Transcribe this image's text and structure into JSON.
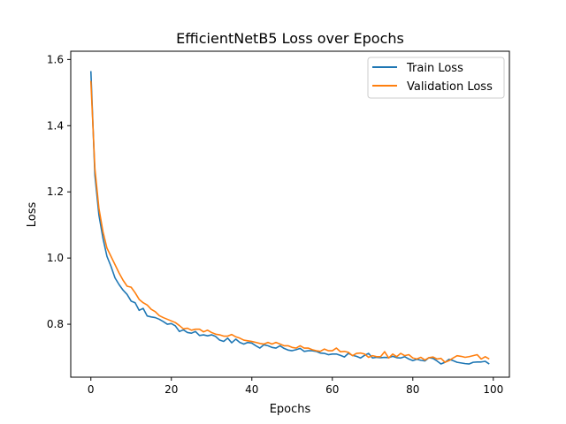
{
  "chart_data": {
    "type": "line",
    "title": "EfficientNetB5 Loss over Epochs",
    "xlabel": "Epochs",
    "ylabel": "Loss",
    "xlim": [
      -5,
      104
    ],
    "ylim": [
      0.64,
      1.625
    ],
    "x_ticks": [
      0,
      20,
      40,
      60,
      80,
      100
    ],
    "y_ticks": [
      0.8,
      1.0,
      1.2,
      1.4,
      1.6
    ],
    "x_tick_labels": [
      "0",
      "20",
      "40",
      "60",
      "80",
      "100"
    ],
    "y_tick_labels": [
      "0.8",
      "1.0",
      "1.2",
      "1.4",
      "1.6"
    ],
    "grid": false,
    "legend_position": "top-right",
    "x": [
      0,
      1,
      2,
      3,
      4,
      5,
      6,
      7,
      8,
      9,
      10,
      11,
      12,
      13,
      14,
      15,
      16,
      17,
      18,
      19,
      20,
      21,
      22,
      23,
      24,
      25,
      26,
      27,
      28,
      29,
      30,
      31,
      32,
      33,
      34,
      35,
      36,
      37,
      38,
      39,
      40,
      41,
      42,
      43,
      44,
      45,
      46,
      47,
      48,
      49,
      50,
      51,
      52,
      53,
      54,
      55,
      56,
      57,
      58,
      59,
      60,
      61,
      62,
      63,
      64,
      65,
      66,
      67,
      68,
      69,
      70,
      71,
      72,
      73,
      74,
      75,
      76,
      77,
      78,
      79,
      80,
      81,
      82,
      83,
      84,
      85,
      86,
      87,
      88,
      89,
      90,
      91,
      92,
      93,
      94,
      95,
      96,
      97,
      98,
      99
    ],
    "series": [
      {
        "name": "Train Loss",
        "color": "#1f77b4",
        "values": [
          1.565,
          1.25,
          1.13,
          1.06,
          1.005,
          0.975,
          0.94,
          0.92,
          0.903,
          0.89,
          0.87,
          0.865,
          0.842,
          0.848,
          0.825,
          0.822,
          0.82,
          0.815,
          0.808,
          0.8,
          0.802,
          0.795,
          0.778,
          0.783,
          0.775,
          0.773,
          0.778,
          0.766,
          0.768,
          0.765,
          0.768,
          0.763,
          0.752,
          0.748,
          0.758,
          0.744,
          0.755,
          0.745,
          0.74,
          0.745,
          0.743,
          0.735,
          0.728,
          0.738,
          0.735,
          0.73,
          0.728,
          0.735,
          0.727,
          0.722,
          0.72,
          0.723,
          0.727,
          0.718,
          0.72,
          0.72,
          0.718,
          0.713,
          0.712,
          0.708,
          0.71,
          0.71,
          0.706,
          0.701,
          0.712,
          0.706,
          0.703,
          0.698,
          0.706,
          0.712,
          0.698,
          0.7,
          0.699,
          0.7,
          0.699,
          0.703,
          0.699,
          0.698,
          0.702,
          0.695,
          0.69,
          0.694,
          0.691,
          0.689,
          0.699,
          0.697,
          0.689,
          0.68,
          0.685,
          0.694,
          0.69,
          0.685,
          0.683,
          0.681,
          0.68,
          0.685,
          0.686,
          0.686,
          0.688,
          0.68
        ]
      },
      {
        "name": "Validation Loss",
        "color": "#ff7f0e",
        "values": [
          1.535,
          1.27,
          1.15,
          1.08,
          1.03,
          1.005,
          0.98,
          0.955,
          0.933,
          0.915,
          0.912,
          0.895,
          0.875,
          0.865,
          0.858,
          0.845,
          0.838,
          0.826,
          0.82,
          0.815,
          0.81,
          0.805,
          0.796,
          0.786,
          0.788,
          0.782,
          0.785,
          0.785,
          0.777,
          0.782,
          0.775,
          0.77,
          0.768,
          0.764,
          0.764,
          0.769,
          0.762,
          0.758,
          0.752,
          0.75,
          0.748,
          0.745,
          0.742,
          0.74,
          0.745,
          0.74,
          0.745,
          0.74,
          0.735,
          0.735,
          0.73,
          0.728,
          0.735,
          0.728,
          0.728,
          0.723,
          0.72,
          0.718,
          0.725,
          0.72,
          0.72,
          0.728,
          0.717,
          0.718,
          0.715,
          0.705,
          0.712,
          0.713,
          0.71,
          0.7,
          0.705,
          0.702,
          0.702,
          0.717,
          0.698,
          0.71,
          0.702,
          0.712,
          0.705,
          0.708,
          0.698,
          0.695,
          0.7,
          0.692,
          0.699,
          0.701,
          0.695,
          0.697,
          0.685,
          0.69,
          0.698,
          0.705,
          0.703,
          0.7,
          0.702,
          0.705,
          0.708,
          0.695,
          0.702,
          0.695
        ]
      }
    ]
  }
}
